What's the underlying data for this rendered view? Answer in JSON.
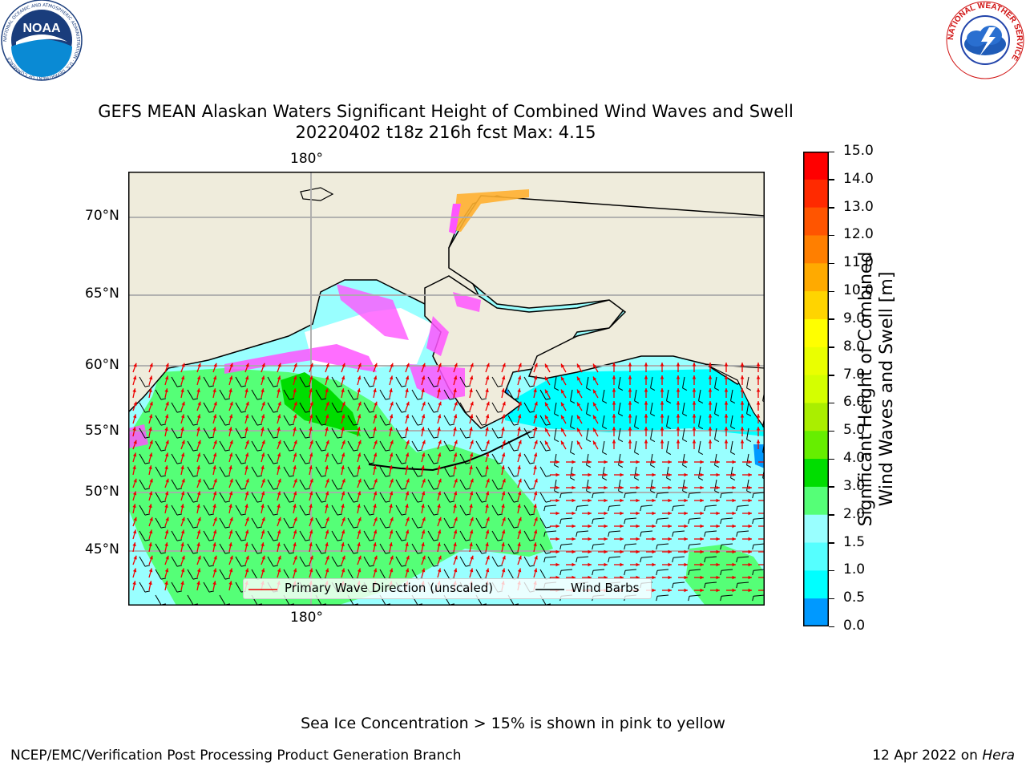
{
  "header": {
    "left_logo": "NOAA",
    "left_logo_ring_text": "NATIONAL OCEANIC AND ATMOSPHERIC ADMINISTRATION · U.S. DEPARTMENT OF COMMERCE",
    "right_logo_ring_text": "NATIONAL WEATHER SERVICE"
  },
  "title": {
    "line1": "GEFS MEAN Alaskan Waters Significant Height of Combined Wind Waves and Swell",
    "line2": "20220402 t18z 216h fcst   Max: 4.15"
  },
  "map": {
    "longitude_labels": [
      "180°",
      "180°"
    ],
    "latitude_labels": [
      "70°N",
      "65°N",
      "60°N",
      "55°N",
      "50°N",
      "45°N"
    ],
    "legend": {
      "wave_direction": "Primary Wave Direction (unscaled)",
      "wind_barbs": "Wind Barbs"
    },
    "colors": {
      "land": "#efecdc",
      "ice_pink": "#ff55ff",
      "ice_orange": "#ffb030",
      "arrow": "#ee0000",
      "barb": "#000000"
    }
  },
  "colorbar": {
    "label_line1": "Significant Height of Combined",
    "label_line2": "Wind Waves and Swell [m]",
    "ticks": [
      "15.0",
      "14.0",
      "13.0",
      "12.0",
      "11.0",
      "10.0",
      "9.0",
      "8.0",
      "7.0",
      "6.0",
      "5.0",
      "4.0",
      "3.0",
      "2.0",
      "1.5",
      "1.0",
      "0.5",
      "0.0"
    ],
    "colors_top_to_bottom": [
      "#ff0000",
      "#ff2a00",
      "#ff5500",
      "#ff7f00",
      "#ffaa00",
      "#ffd400",
      "#ffff00",
      "#eaff00",
      "#d4ff00",
      "#aaee00",
      "#66ee00",
      "#00dd00",
      "#55ff77",
      "#99ffff",
      "#55ffff",
      "#00ffff",
      "#0099ff",
      "#0000ff"
    ]
  },
  "footer": {
    "sea_ice_note": "Sea Ice Concentration > 15% is shown in pink to yellow",
    "producer": "NCEP/EMC/Verification Post Processing Product Generation Branch",
    "date_prefix": "12 Apr 2022 on ",
    "machine": "Hera"
  }
}
